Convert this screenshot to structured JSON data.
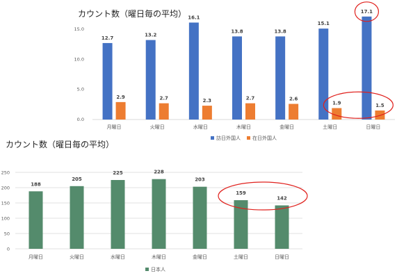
{
  "chart_data": [
    {
      "type": "bar",
      "title": "カウント数（曜日毎の平均）",
      "categories": [
        "月曜日",
        "火曜日",
        "水曜日",
        "木曜日",
        "金曜日",
        "土曜日",
        "日曜日"
      ],
      "series": [
        {
          "name": "訪日外国人",
          "color": "#4472C4",
          "values": [
            12.7,
            13.2,
            16.1,
            13.8,
            13.8,
            15.1,
            17.1
          ]
        },
        {
          "name": "在日外国人",
          "color": "#ED7D31",
          "values": [
            2.9,
            2.7,
            2.3,
            2.7,
            2.6,
            1.9,
            1.5
          ]
        }
      ],
      "yticks": [
        "0.0",
        "5.0",
        "10.0",
        "15.0"
      ],
      "ylim": [
        0,
        18
      ],
      "grid": false,
      "legend": "bottom",
      "annotations": "red circles around 日曜日 訪日外国人 17.1 and 土曜日/日曜日 在日外国人 1.9, 1.5"
    },
    {
      "type": "bar",
      "title": "カウント数（曜日毎の平均）",
      "categories": [
        "月曜日",
        "火曜日",
        "水曜日",
        "木曜日",
        "金曜日",
        "土曜日",
        "日曜日"
      ],
      "series": [
        {
          "name": "日本人",
          "color": "#548B6C",
          "values": [
            188,
            205,
            225,
            228,
            203,
            159,
            142
          ]
        }
      ],
      "yticks": [
        "0",
        "50",
        "100",
        "150",
        "200",
        "250"
      ],
      "ylim": [
        0,
        250
      ],
      "grid": true,
      "legend": "bottom",
      "annotations": "red circle around 土曜日 159 and 日曜日 142"
    }
  ]
}
